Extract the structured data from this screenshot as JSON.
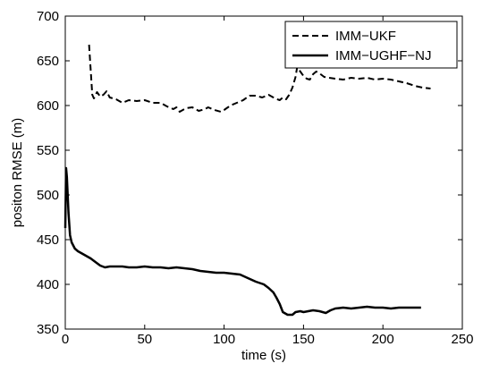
{
  "chart_data": {
    "type": "line",
    "title": "",
    "xlabel": "time (s)",
    "ylabel": "positon RMSE (m)",
    "xlim": [
      0,
      250
    ],
    "ylim": [
      350,
      700
    ],
    "xticks": [
      0,
      50,
      100,
      150,
      200,
      250
    ],
    "yticks": [
      350,
      400,
      450,
      500,
      550,
      600,
      650,
      700
    ],
    "xtick_labels": [
      "0",
      "50",
      "100",
      "150",
      "200",
      "250"
    ],
    "ytick_labels": [
      "350",
      "400",
      "450",
      "500",
      "550",
      "600",
      "650",
      "700"
    ],
    "grid": false,
    "legend_position": "top-right",
    "series": [
      {
        "name": "IMM−UKF",
        "style": "dashed",
        "color": "#000000",
        "points": [
          [
            15,
            668
          ],
          [
            16,
            640
          ],
          [
            17,
            612
          ],
          [
            18,
            608
          ],
          [
            20,
            615
          ],
          [
            22,
            610
          ],
          [
            24,
            612
          ],
          [
            26,
            616
          ],
          [
            28,
            609
          ],
          [
            32,
            607
          ],
          [
            36,
            603
          ],
          [
            40,
            606
          ],
          [
            45,
            605
          ],
          [
            50,
            606
          ],
          [
            55,
            603
          ],
          [
            60,
            603
          ],
          [
            64,
            599
          ],
          [
            68,
            596
          ],
          [
            70,
            598
          ],
          [
            72,
            593
          ],
          [
            76,
            597
          ],
          [
            80,
            598
          ],
          [
            84,
            594
          ],
          [
            88,
            596
          ],
          [
            90,
            598
          ],
          [
            94,
            595
          ],
          [
            98,
            593
          ],
          [
            100,
            595
          ],
          [
            104,
            600
          ],
          [
            108,
            603
          ],
          [
            112,
            606
          ],
          [
            116,
            611
          ],
          [
            120,
            611
          ],
          [
            124,
            609
          ],
          [
            128,
            612
          ],
          [
            132,
            608
          ],
          [
            135,
            606
          ],
          [
            137,
            609
          ],
          [
            139,
            607
          ],
          [
            141,
            612
          ],
          [
            143,
            620
          ],
          [
            145,
            632
          ],
          [
            146,
            643
          ],
          [
            148,
            638
          ],
          [
            150,
            633
          ],
          [
            152,
            630
          ],
          [
            154,
            629
          ],
          [
            156,
            635
          ],
          [
            158,
            638
          ],
          [
            160,
            636
          ],
          [
            163,
            632
          ],
          [
            166,
            631
          ],
          [
            170,
            630
          ],
          [
            175,
            629
          ],
          [
            180,
            631
          ],
          [
            185,
            630
          ],
          [
            190,
            631
          ],
          [
            195,
            629
          ],
          [
            200,
            630
          ],
          [
            205,
            629
          ],
          [
            210,
            627
          ],
          [
            215,
            625
          ],
          [
            220,
            622
          ],
          [
            225,
            620
          ],
          [
            230,
            619
          ]
        ]
      },
      {
        "name": "IMM−UGHF−NJ",
        "style": "solid",
        "color": "#000000",
        "points": [
          [
            0,
            463
          ],
          [
            0.5,
            530
          ],
          [
            1,
            520
          ],
          [
            2,
            480
          ],
          [
            3,
            455
          ],
          [
            4,
            447
          ],
          [
            6,
            440
          ],
          [
            8,
            437
          ],
          [
            10,
            435
          ],
          [
            13,
            432
          ],
          [
            16,
            429
          ],
          [
            19,
            425
          ],
          [
            22,
            421
          ],
          [
            25,
            419
          ],
          [
            28,
            420
          ],
          [
            32,
            420
          ],
          [
            36,
            420
          ],
          [
            40,
            419
          ],
          [
            45,
            419
          ],
          [
            50,
            420
          ],
          [
            55,
            419
          ],
          [
            60,
            419
          ],
          [
            65,
            418
          ],
          [
            70,
            419
          ],
          [
            75,
            418
          ],
          [
            80,
            417
          ],
          [
            85,
            415
          ],
          [
            90,
            414
          ],
          [
            95,
            413
          ],
          [
            100,
            413
          ],
          [
            105,
            412
          ],
          [
            110,
            411
          ],
          [
            115,
            407
          ],
          [
            120,
            403
          ],
          [
            125,
            400
          ],
          [
            128,
            396
          ],
          [
            131,
            391
          ],
          [
            133,
            385
          ],
          [
            135,
            378
          ],
          [
            137,
            369
          ],
          [
            140,
            366
          ],
          [
            143,
            366
          ],
          [
            145,
            369
          ],
          [
            148,
            370
          ],
          [
            150,
            369
          ],
          [
            153,
            370
          ],
          [
            156,
            371
          ],
          [
            160,
            370
          ],
          [
            164,
            368
          ],
          [
            167,
            371
          ],
          [
            170,
            373
          ],
          [
            175,
            374
          ],
          [
            180,
            373
          ],
          [
            185,
            374
          ],
          [
            190,
            375
          ],
          [
            195,
            374
          ],
          [
            200,
            374
          ],
          [
            205,
            373
          ],
          [
            210,
            374
          ],
          [
            215,
            374
          ],
          [
            220,
            374
          ],
          [
            224,
            374
          ]
        ]
      }
    ]
  }
}
